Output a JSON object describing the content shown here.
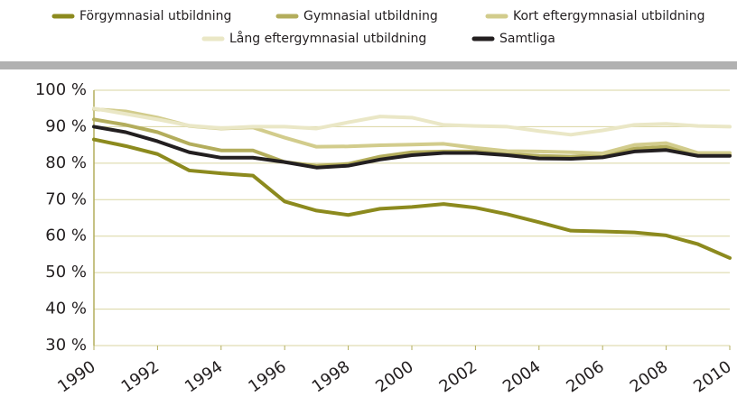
{
  "chart_data": {
    "type": "line",
    "x": [
      1990,
      1991,
      1992,
      1993,
      1994,
      1995,
      1996,
      1997,
      1998,
      1999,
      2000,
      2001,
      2002,
      2003,
      2004,
      2005,
      2006,
      2007,
      2008,
      2009,
      2010
    ],
    "series": [
      {
        "name": "Förgymnasial utbildning",
        "color": "#8c8a1e",
        "values": [
          86.5,
          84.7,
          82.5,
          78,
          77.2,
          76.6,
          69.5,
          67,
          65.8,
          67.5,
          68,
          68.8,
          67.8,
          66,
          63.8,
          61.5,
          61.3,
          61,
          60.2,
          57.8,
          54
        ]
      },
      {
        "name": "Gymnasial utbildning",
        "color": "#b3ad5c",
        "values": [
          92,
          90.5,
          88.5,
          85.3,
          83.5,
          83.5,
          80.3,
          79.3,
          79.8,
          81.8,
          83,
          83.2,
          83.2,
          82.5,
          82,
          81.8,
          82.2,
          84,
          84.5,
          82.3,
          82.3
        ]
      },
      {
        "name": "Kort eftergymnasial utbildning",
        "color": "#d2cc8c",
        "values": [
          94.8,
          94.2,
          92.5,
          90.2,
          89.5,
          89.8,
          87,
          84.5,
          84.6,
          84.9,
          85.1,
          85.3,
          84.2,
          83.3,
          83.2,
          83,
          82.7,
          85,
          85.5,
          82.8,
          82.8
        ]
      },
      {
        "name": "Lång eftergymnasial utbildning",
        "color": "#eae7c6",
        "values": [
          95,
          93.5,
          92,
          90.3,
          89.6,
          90,
          90,
          89.5,
          91.2,
          92.8,
          92.5,
          90.5,
          90.2,
          90,
          88.8,
          87.8,
          89,
          90.5,
          90.8,
          90.2,
          90
        ]
      },
      {
        "name": "Samtliga",
        "color": "#231f20",
        "values": [
          90,
          88.5,
          86,
          83,
          81.5,
          81.5,
          80.3,
          78.8,
          79.3,
          81,
          82.2,
          82.8,
          82.8,
          82.2,
          81.3,
          81.2,
          81.6,
          83.2,
          83.6,
          82,
          82
        ]
      }
    ],
    "xlim": [
      1990,
      2010
    ],
    "xticks": [
      1990,
      1992,
      1994,
      1996,
      1998,
      2000,
      2002,
      2004,
      2006,
      2008,
      2010
    ],
    "ylim": [
      30,
      100
    ],
    "yticks": [
      {
        "value": 30,
        "label": "30 %"
      },
      {
        "value": 40,
        "label": "40 %"
      },
      {
        "value": 50,
        "label": "50 %"
      },
      {
        "value": 60,
        "label": "60 %"
      },
      {
        "value": 70,
        "label": "70 %"
      },
      {
        "value": 80,
        "label": "80 %"
      },
      {
        "value": 90,
        "label": "90 %"
      },
      {
        "value": 100,
        "label": "100 %"
      }
    ],
    "grid": true
  }
}
